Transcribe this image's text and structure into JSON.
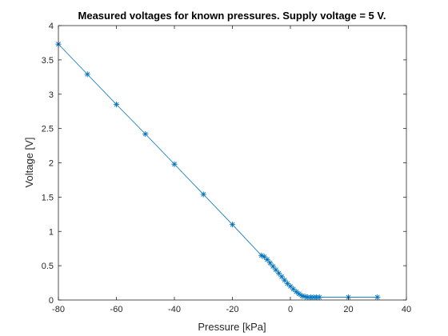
{
  "chart_data": {
    "type": "line",
    "title": "Measured voltages for known pressures. Supply voltage = 5 V.",
    "xlabel": "Pressure [kPa]",
    "ylabel": "Voltage [V]",
    "xlim": [
      -80,
      40
    ],
    "ylim": [
      0,
      4
    ],
    "xticks": [
      "-80",
      "-60",
      "-40",
      "-20",
      "0",
      "20",
      "40"
    ],
    "yticks": [
      "0",
      "0.5",
      "1",
      "1.5",
      "2",
      "2.5",
      "3",
      "3.5",
      "4"
    ],
    "grid": false,
    "legend": "none",
    "marker": "asterisk",
    "series": [
      {
        "color": "#0072BD",
        "x": [
          -80,
          -70,
          -60,
          -50,
          -40,
          -30,
          -20,
          -10,
          -9,
          -8,
          -7,
          -6,
          -5,
          -4,
          -3,
          -2,
          -1,
          0,
          1,
          2,
          3,
          4,
          5,
          6,
          7,
          8,
          9,
          10,
          20,
          30
        ],
        "y": [
          3.73,
          3.29,
          2.85,
          2.42,
          1.98,
          1.54,
          1.1,
          0.65,
          0.63,
          0.59,
          0.54,
          0.49,
          0.44,
          0.39,
          0.34,
          0.29,
          0.24,
          0.2,
          0.16,
          0.12,
          0.09,
          0.06,
          0.05,
          0.04,
          0.04,
          0.04,
          0.04,
          0.04,
          0.04,
          0.04
        ]
      }
    ]
  }
}
